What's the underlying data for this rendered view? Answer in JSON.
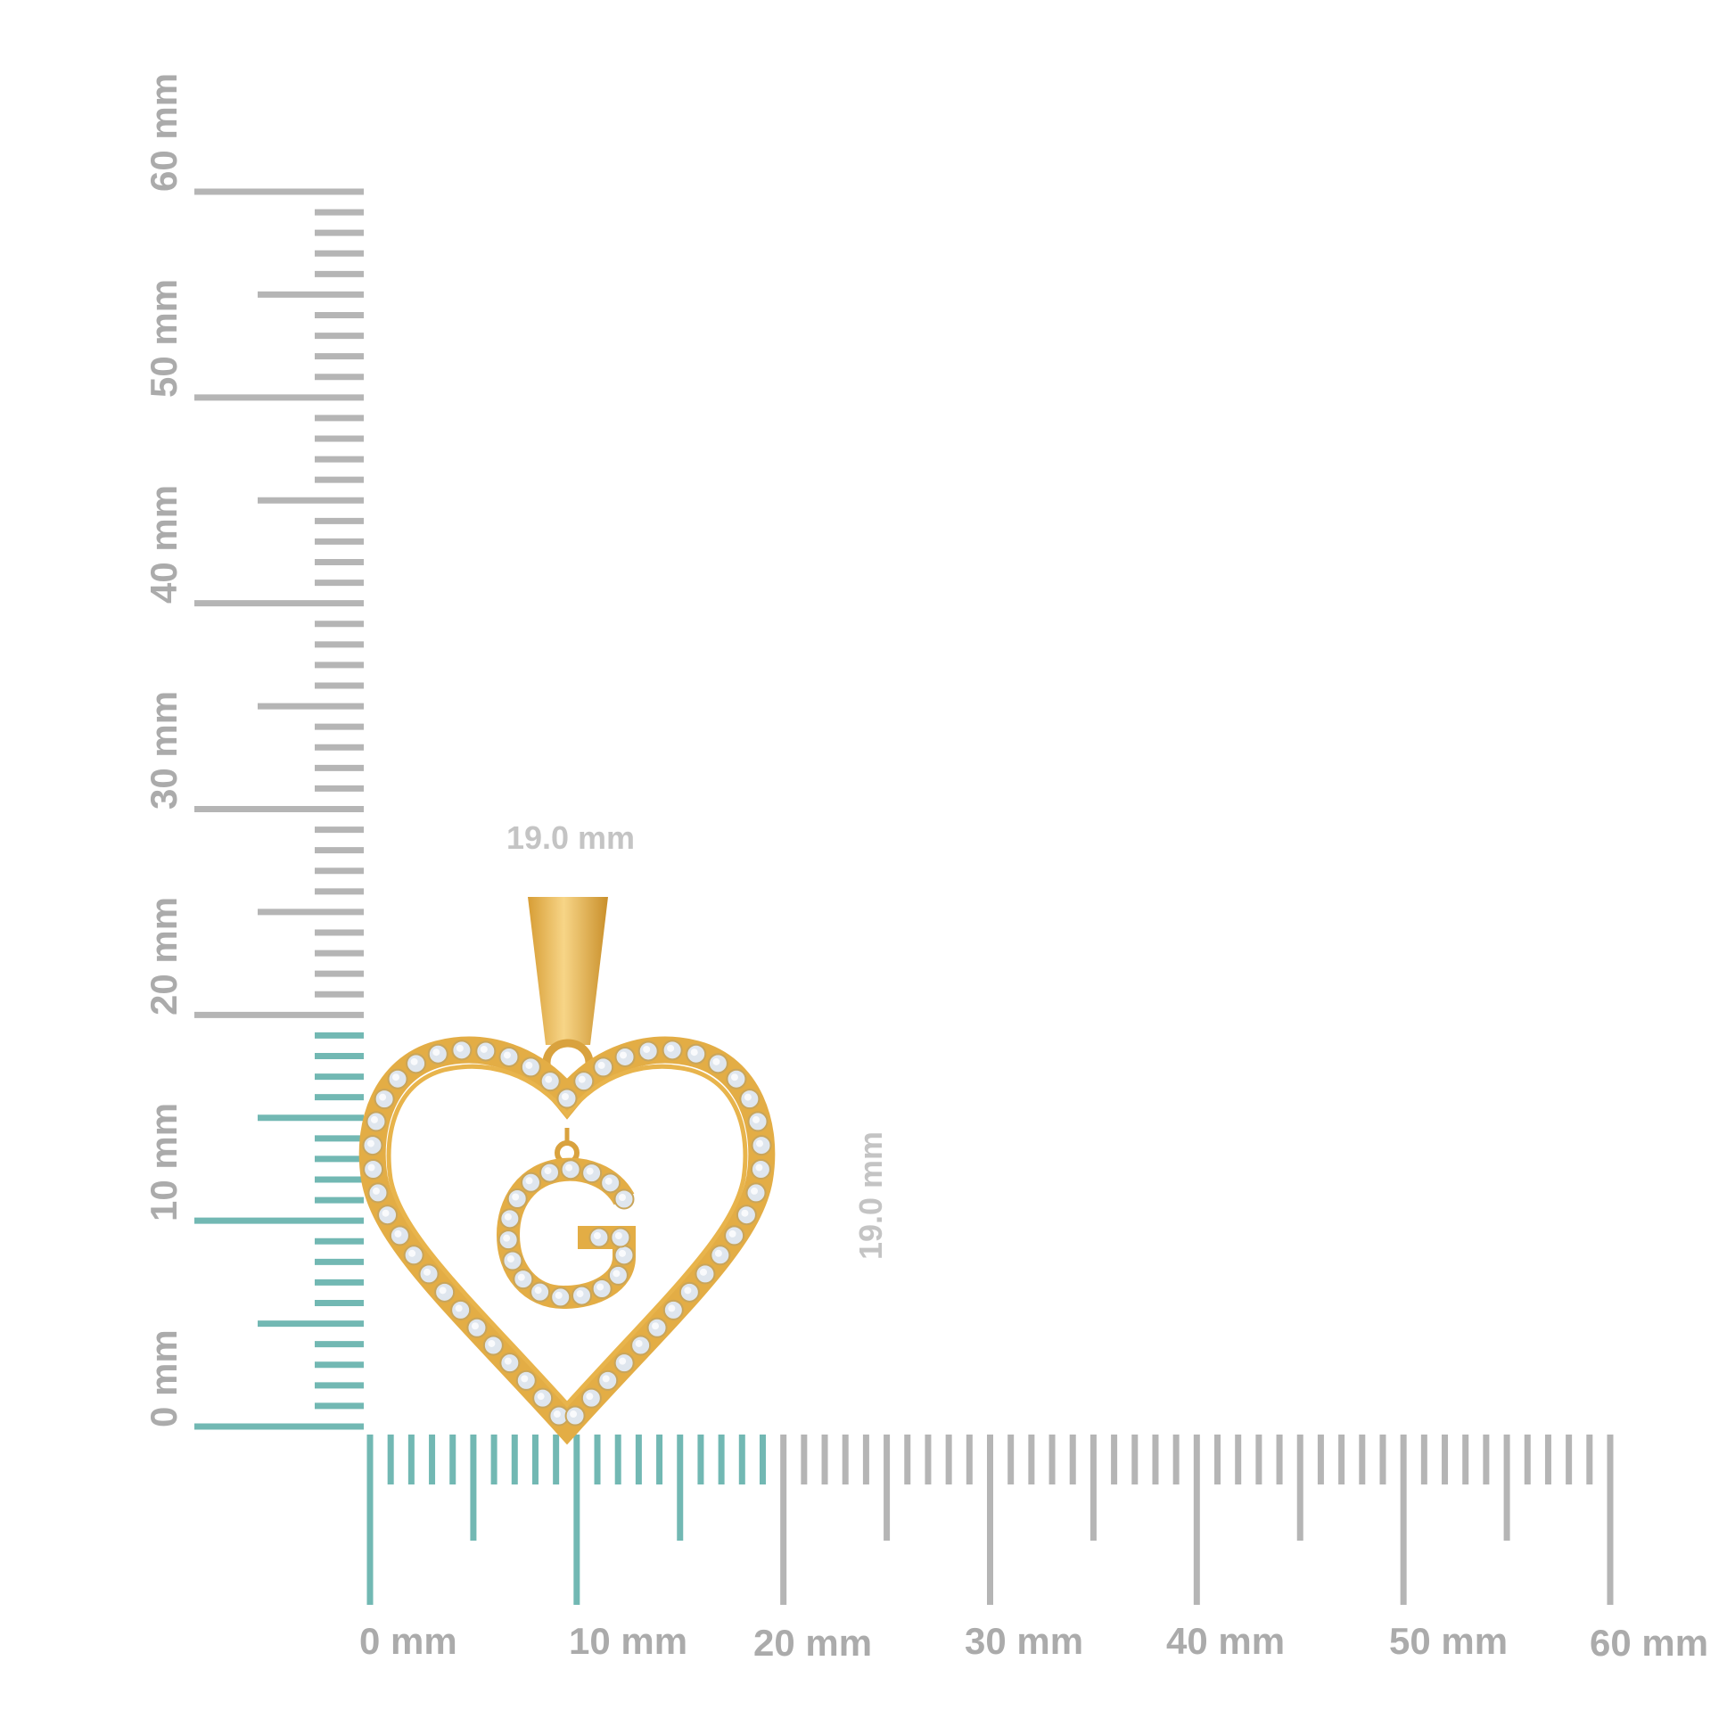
{
  "colors": {
    "teal": "#72b8b3",
    "grey": "#b5b5b5",
    "gold": "#e8b44c",
    "gold_dark": "#c98f2a",
    "stone": "#dfe6ee"
  },
  "ruler": {
    "unit": "mm",
    "highlight_mm": 19,
    "vertical_labels": [
      "0 mm",
      "10 mm",
      "20 mm",
      "30 mm",
      "40 mm",
      "50 mm",
      "60 mm"
    ],
    "horizontal_labels": [
      "0 mm",
      "10 mm",
      "20 mm",
      "30 mm",
      "40 mm",
      "50 mm",
      "60 mm"
    ]
  },
  "dimensions": {
    "width_label": "19.0 mm",
    "height_label": "19.0 mm"
  },
  "pendant": {
    "letter": "G",
    "shape": "heart"
  }
}
